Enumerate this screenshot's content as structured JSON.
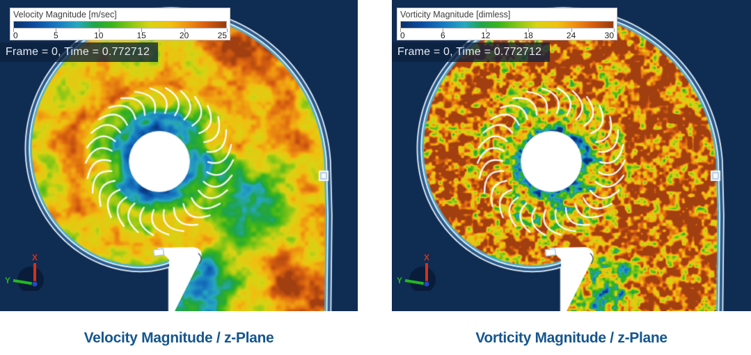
{
  "panels": [
    {
      "legend": {
        "title": "Velocity Magnitude [m/sec]",
        "ticks": [
          "0",
          "5",
          "10",
          "15",
          "20",
          "25"
        ]
      },
      "frame_label": "Frame = 0, Time = 0.772712",
      "caption": "Velocity Magnitude / z-Plane",
      "axes": {
        "x": "X",
        "y": "Y"
      }
    },
    {
      "legend": {
        "title": "Vorticity Magnitude [dimless]",
        "ticks": [
          "0",
          "6",
          "12",
          "18",
          "24",
          "30"
        ]
      },
      "frame_label": "Frame = 0, Time = 0.772712",
      "caption": "Vorticity Magnitude / z-Plane",
      "axes": {
        "x": "X",
        "y": "Y"
      }
    }
  ],
  "colors": {
    "background_navy": "#0f2c53",
    "caption_text": "#15568E",
    "axis_x": "#d93018",
    "axis_y": "#22b822",
    "axis_z_dot": "#2846c8",
    "casing_white": "#edf2f7",
    "casing_gap_blue": "#2a5c8e",
    "edge_cyan": "#46afdc",
    "geometry_white": "#ffffff",
    "colormap_stops": [
      [
        0.0,
        "#0a3068"
      ],
      [
        0.1,
        "#0c4da0"
      ],
      [
        0.2,
        "#1878c0"
      ],
      [
        0.3,
        "#28a8c0"
      ],
      [
        0.38,
        "#1fa448"
      ],
      [
        0.46,
        "#3ab41c"
      ],
      [
        0.56,
        "#90c816"
      ],
      [
        0.64,
        "#d8d414"
      ],
      [
        0.74,
        "#f0c010"
      ],
      [
        0.82,
        "#ee9012"
      ],
      [
        0.9,
        "#d86010"
      ],
      [
        1.0,
        "#973a10"
      ]
    ]
  },
  "chart_data": [
    {
      "type": "heatmap",
      "title": "Velocity Magnitude / z-Plane",
      "field": "Velocity Magnitude",
      "units": "m/sec",
      "plane": "z-Plane",
      "range": [
        0,
        25
      ],
      "colorbar_ticks": [
        0,
        5,
        10,
        15,
        20,
        25
      ],
      "frame": 0,
      "time": 0.772712,
      "legend_position": "top-left",
      "description": "Turbulent velocity magnitude contours in a centrifugal fan volute cross-section: low velocity (blue/green) inside the bladed impeller ring, high velocity (orange/brown) in the volute scroll and outlet duct; white impeller hub, 30 curved blades and volute tongue geometry shown in white."
    },
    {
      "type": "heatmap",
      "title": "Vorticity Magnitude / z-Plane",
      "field": "Vorticity Magnitude",
      "units": "dimless",
      "plane": "z-Plane",
      "range": [
        0,
        30
      ],
      "colorbar_ticks": [
        0,
        6,
        12,
        18,
        24,
        30
      ],
      "frame": 0,
      "time": 0.772712,
      "legend_position": "top-left",
      "description": "Fine-grained turbulent vorticity magnitude speckle over the same fan section: predominantly saturated (brown) with yellow/green filaments and sparse cyan spots, denser low-vorticity patches near the hub."
    }
  ]
}
